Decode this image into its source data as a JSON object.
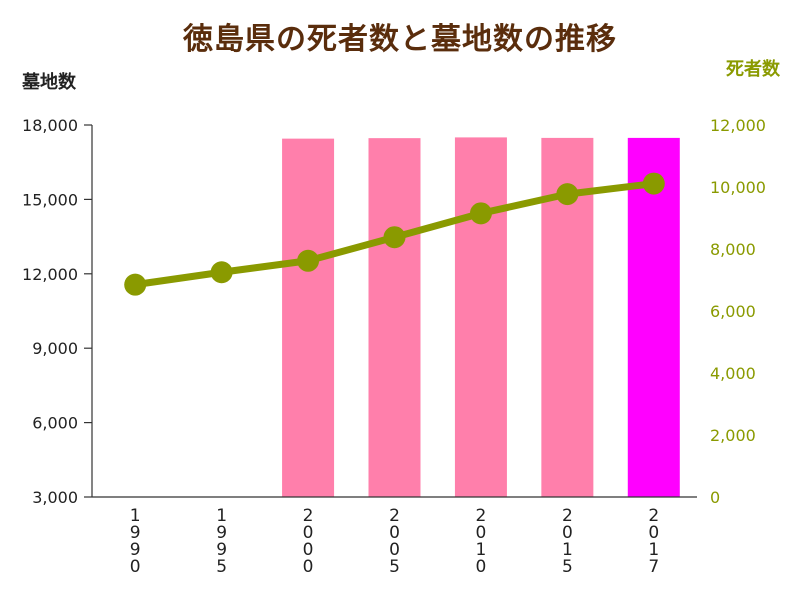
{
  "title": "徳島県の死者数と墓地数の推移",
  "chart_data": {
    "type": "bar",
    "categories": [
      "1990",
      "1995",
      "2000",
      "2005",
      "2010",
      "2015",
      "2017"
    ],
    "series": [
      {
        "name": "墓地数",
        "type": "bar",
        "axis": "left",
        "values": [
          null,
          null,
          17450,
          17470,
          17500,
          17480,
          17480
        ],
        "color": "#ff7fab",
        "highlight_index": 6,
        "highlight_color": "#ff00ff"
      },
      {
        "name": "死者数",
        "type": "line",
        "axis": "right",
        "values": [
          6850,
          7250,
          7620,
          8380,
          9150,
          9770,
          10110
        ],
        "color": "#8a9a00"
      }
    ],
    "ylabel_left": "墓地数",
    "ylabel_right": "死者数",
    "ylim_left": [
      3000,
      18000
    ],
    "ylim_right": [
      0,
      12000
    ],
    "yticks_left": [
      "3,000",
      "6,000",
      "9,000",
      "12,000",
      "15,000",
      "18,000"
    ],
    "yticks_right": [
      "0",
      "2,000",
      "4,000",
      "6,000",
      "8,000",
      "10,000",
      "12,000"
    ],
    "grid": false
  }
}
